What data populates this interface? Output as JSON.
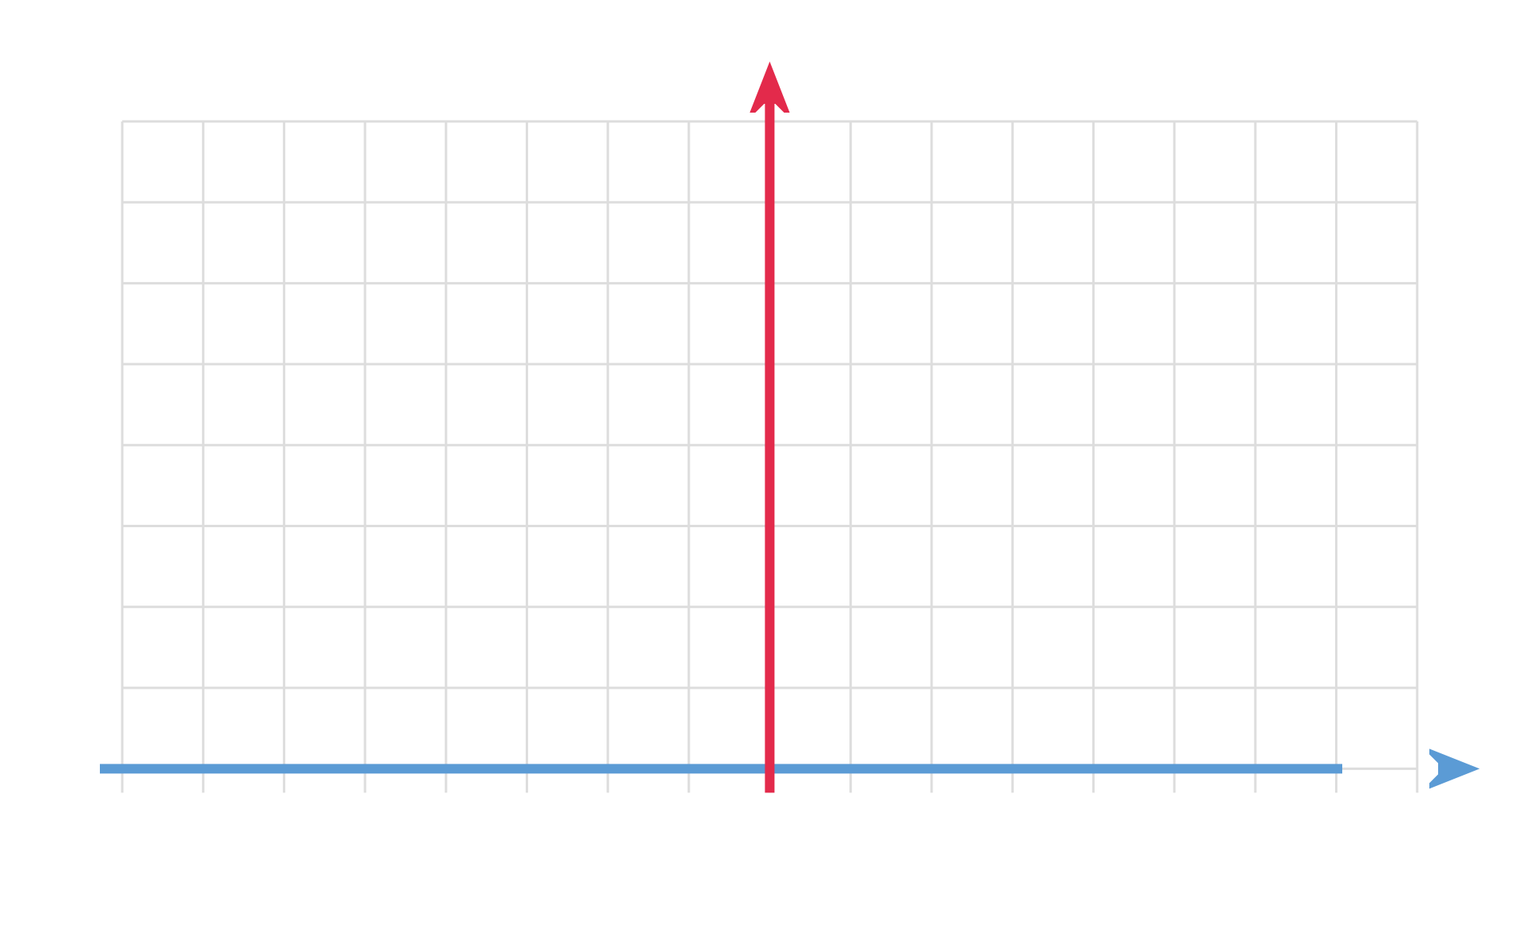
{
  "diagram": {
    "type": "coordinate-grid",
    "grid": {
      "columns": 16,
      "rows": 8,
      "line_color": "#dddddd"
    },
    "x_axis": {
      "color": "#5b9bd5",
      "direction": "right",
      "position_row": 8
    },
    "y_axis": {
      "color": "#e32a4b",
      "direction": "up",
      "position_column": 8
    },
    "labels": []
  }
}
